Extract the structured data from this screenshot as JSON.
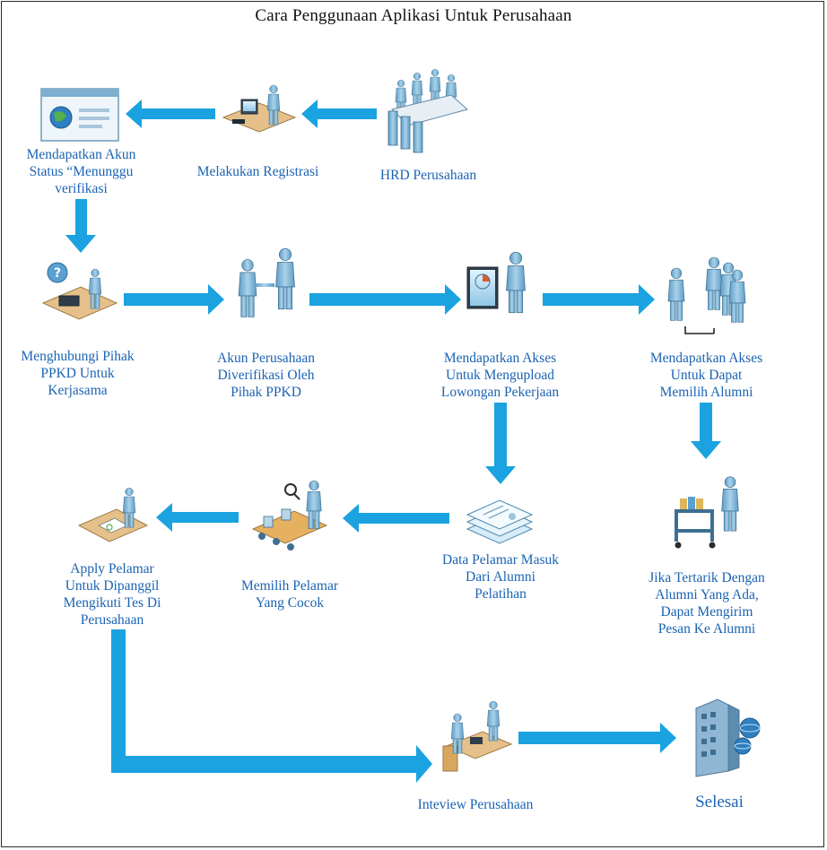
{
  "title": "Cara Penggunaan Aplikasi Untuk Perusahaan",
  "colors": {
    "arrow": "#1aa3e0",
    "label": "#1b63b3",
    "figure": "#7fb7d8",
    "desk": "#d9b07a"
  },
  "steps": {
    "hrd": "HRD Perusahaan",
    "registrasi": "Melakukan Registrasi",
    "akun": "Mendapatkan Akun\nStatus “Menunggu\nverifikasi",
    "hubungi": "Menghubungi Pihak\nPPKD Untuk\nKerjasama",
    "verifikasi": "Akun Perusahaan\nDiverifikasi Oleh\nPihak PPKD",
    "upload": "Mendapatkan Akses\nUntuk Mengupload\nLowongan Pekerjaan",
    "alumni": "Mendapatkan Akses\nUntuk Dapat\nMemilih Alumni",
    "data_pelamar": "Data Pelamar Masuk\nDari Alumni\nPelatihan",
    "memilih": "Memilih Pelamar\nYang Cocok",
    "apply": "Apply Pelamar\nUntuk Dipanggil\nMengikuti Tes Di\nPerusahaan",
    "pesan": "Jika Tertarik Dengan\nAlumni Yang Ada,\nDapat Mengirim\nPesan Ke Alumni",
    "interview": "Inteview Perusahaan",
    "selesai": "Selesai"
  }
}
